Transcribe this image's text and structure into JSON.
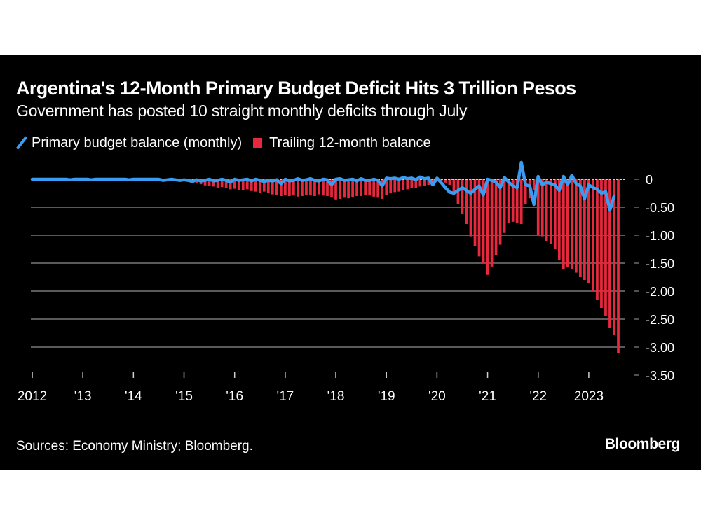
{
  "header": {
    "title": "Argentina's 12-Month Primary Budget Deficit Hits 3 Trillion Pesos",
    "subtitle": "Government has posted 10 straight monthly deficits through July"
  },
  "legend": {
    "items": [
      {
        "label": "Primary budget balance (monthly)",
        "icon": "blue-line-icon",
        "color": "#3a9cf0"
      },
      {
        "label": "Trailing 12-month balance",
        "icon": "red-square-icon",
        "color": "#e8283c"
      }
    ]
  },
  "footer": {
    "source": "Sources: Economy Ministry; Bloomberg.",
    "brand": "Bloomberg"
  },
  "chart_data": {
    "type": "bar",
    "title": "Argentina's 12-Month Primary Budget Deficit Hits 3 Trillion Pesos",
    "subtitle": "Government has posted 10 straight monthly deficits through July",
    "xlabel": "",
    "ylabel": "",
    "units": "trillion pesos",
    "ylim": [
      -3.5,
      0
    ],
    "yticks": [
      0,
      -0.5,
      -1.0,
      -1.5,
      -2.0,
      -2.5,
      -3.0,
      -3.5
    ],
    "ytick_labels": [
      "0",
      "-0.50",
      "-1.00",
      "-1.50",
      "-2.00",
      "-2.50",
      "-3.00",
      "-3.50"
    ],
    "xtick_labels": [
      "2012",
      "'13",
      "'14",
      "'15",
      "'16",
      "'17",
      "'18",
      "'19",
      "'20",
      "'21",
      "'22",
      "2023"
    ],
    "x_start": "2012-01",
    "x_end": "2023-07",
    "frequency": "monthly",
    "grid": true,
    "legend_position": "top-left",
    "axis_position": "right",
    "series": [
      {
        "name": "Trailing 12-month balance",
        "type": "bar",
        "color": "#e8283c",
        "values": [
          0,
          0,
          0,
          0,
          0,
          0,
          0,
          0,
          0,
          0,
          0,
          0,
          0,
          0,
          0,
          0,
          0,
          0,
          0,
          0,
          0,
          0,
          0,
          0,
          0,
          0,
          0,
          0,
          0,
          0,
          0,
          0,
          0,
          0,
          0,
          0,
          -0.02,
          -0.03,
          -0.05,
          -0.07,
          -0.09,
          -0.11,
          -0.12,
          -0.13,
          -0.15,
          -0.14,
          -0.16,
          -0.18,
          -0.17,
          -0.19,
          -0.2,
          -0.18,
          -0.21,
          -0.22,
          -0.24,
          -0.22,
          -0.25,
          -0.27,
          -0.28,
          -0.3,
          -0.28,
          -0.3,
          -0.29,
          -0.31,
          -0.3,
          -0.28,
          -0.29,
          -0.3,
          -0.27,
          -0.29,
          -0.3,
          -0.32,
          -0.36,
          -0.35,
          -0.33,
          -0.34,
          -0.32,
          -0.3,
          -0.3,
          -0.28,
          -0.29,
          -0.31,
          -0.33,
          -0.35,
          -0.28,
          -0.25,
          -0.23,
          -0.22,
          -0.2,
          -0.18,
          -0.16,
          -0.15,
          -0.13,
          -0.12,
          -0.1,
          -0.08,
          -0.02,
          -0.03,
          -0.06,
          -0.1,
          -0.25,
          -0.45,
          -0.62,
          -0.8,
          -1.02,
          -1.2,
          -1.38,
          -1.5,
          -1.71,
          -1.56,
          -1.36,
          -1.17,
          -0.96,
          -0.78,
          -0.76,
          -0.78,
          -0.8,
          -0.44,
          -0.34,
          -0.2,
          -0.99,
          -1.02,
          -1.1,
          -1.15,
          -1.25,
          -1.45,
          -1.6,
          -1.57,
          -1.6,
          -1.67,
          -1.75,
          -1.8,
          -1.85,
          -2.0,
          -2.15,
          -2.3,
          -2.45,
          -2.65,
          -2.78,
          -3.1
        ]
      },
      {
        "name": "Primary budget balance (monthly)",
        "type": "line",
        "color": "#3a9cf0",
        "values": [
          0,
          0,
          0,
          0,
          0,
          0,
          0,
          0,
          0,
          -0.01,
          0,
          0,
          0,
          0,
          -0.01,
          0,
          0,
          0,
          0,
          0,
          0,
          0,
          0,
          -0.01,
          0,
          0,
          0,
          0,
          0,
          0,
          0,
          -0.02,
          -0.01,
          0,
          -0.01,
          -0.02,
          -0.01,
          -0.02,
          -0.04,
          -0.01,
          -0.03,
          -0.02,
          0,
          -0.03,
          -0.02,
          0,
          -0.02,
          -0.05,
          0,
          -0.02,
          -0.01,
          0,
          -0.03,
          0,
          -0.02,
          -0.04,
          -0.02,
          -0.03,
          -0.01,
          -0.08,
          0,
          -0.03,
          -0.02,
          0.01,
          -0.02,
          -0.01,
          0.01,
          -0.02,
          -0.03,
          0,
          -0.01,
          -0.1,
          0,
          0.01,
          -0.02,
          -0.01,
          0,
          -0.03,
          0.01,
          -0.02,
          -0.02,
          0,
          -0.02,
          -0.12,
          0.02,
          0.01,
          0.02,
          0,
          0.03,
          0.01,
          0.02,
          -0.01,
          0.04,
          0.01,
          0.02,
          -0.1,
          0.02,
          -0.06,
          -0.15,
          -0.23,
          -0.25,
          -0.2,
          -0.15,
          -0.2,
          -0.25,
          -0.18,
          -0.12,
          -0.28,
          0.0,
          -0.02,
          -0.05,
          -0.15,
          0.03,
          -0.05,
          -0.12,
          -0.15,
          0.3,
          -0.1,
          -0.12,
          -0.45,
          0.05,
          -0.1,
          -0.05,
          -0.08,
          -0.1,
          -0.2,
          0.05,
          -0.1,
          0.07,
          -0.08,
          -0.12,
          -0.35,
          -0.1,
          -0.15,
          -0.18,
          -0.25,
          -0.22,
          -0.55,
          -0.3
        ]
      }
    ]
  }
}
